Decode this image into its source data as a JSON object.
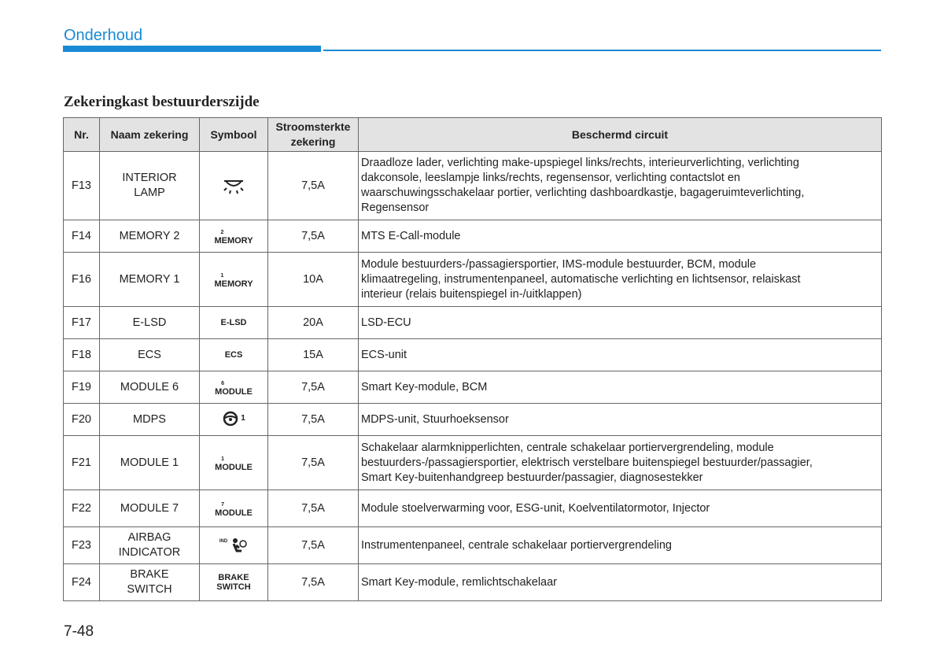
{
  "header": {
    "title": "Onderhoud"
  },
  "section": {
    "title": "Zekeringkast bestuurderszijde"
  },
  "table": {
    "columns": [
      "Nr.",
      "Naam zekering",
      "Symbool",
      [
        "Stroomsterkte",
        "zekering"
      ],
      "Beschermd circuit"
    ],
    "rows": [
      {
        "nr": "F13",
        "name": [
          "INTERIOR",
          "LAMP"
        ],
        "rating": "7,5A",
        "circuit": [
          "Draadloze lader, verlichting make-upspiegel links/rechts, interieurverlichting, verlichting",
          "dakconsole, leeslampje links/rechts, regensensor, verlichting contactslot en",
          "waarschuwingsschakelaar portier, verlichting dashboardkastje, bagageruimteverlichting,",
          "Regensensor"
        ]
      },
      {
        "nr": "F14",
        "name": [
          "MEMORY 2"
        ],
        "symbol": {
          "sup": "2",
          "text": [
            "MEMORY"
          ]
        },
        "rating": "7,5A",
        "circuit": [
          "MTS E-Call-module"
        ]
      },
      {
        "nr": "F16",
        "name": [
          "MEMORY 1"
        ],
        "symbol": {
          "sup": "1",
          "text": [
            "MEMORY"
          ]
        },
        "rating": "10A",
        "circuit": [
          "Module bestuurders-/passagiersportier, IMS-module bestuurder, BCM, module",
          "klimaatregeling, instrumentenpaneel, automatische verlichting en lichtsensor, relaiskast",
          "interieur (relais buitenspiegel in-/uitklappen)"
        ]
      },
      {
        "nr": "F17",
        "name": [
          "E-LSD"
        ],
        "symbol": {
          "text": [
            "E-LSD"
          ]
        },
        "rating": "20A",
        "circuit": [
          "LSD-ECU"
        ]
      },
      {
        "nr": "F18",
        "name": [
          "ECS"
        ],
        "symbol": {
          "text": [
            "ECS"
          ]
        },
        "rating": "15A",
        "circuit": [
          "ECS-unit"
        ]
      },
      {
        "nr": "F19",
        "name": [
          "MODULE 6"
        ],
        "symbol": {
          "sup": "6",
          "text": [
            "MODULE"
          ]
        },
        "rating": "7,5A",
        "circuit": [
          "Smart Key-module, BCM"
        ]
      },
      {
        "nr": "F20",
        "name": [
          "MDPS"
        ],
        "symbol": {
          "sup": "1"
        },
        "rating": "7,5A",
        "circuit": [
          "MDPS-unit, Stuurhoeksensor"
        ]
      },
      {
        "nr": "F21",
        "name": [
          "MODULE 1"
        ],
        "symbol": {
          "sup": "1",
          "text": [
            "MODULE"
          ]
        },
        "rating": "7,5A",
        "circuit": [
          "Schakelaar alarmknipperlichten, centrale schakelaar portiervergrendeling, module",
          "bestuurders-/passagiersportier, elektrisch verstelbare buitenspiegel bestuurder/passagier,",
          "Smart Key-buitenhandgreep bestuurder/passagier, diagnosestekker"
        ]
      },
      {
        "nr": "F22",
        "name": [
          "MODULE 7"
        ],
        "symbol": {
          "sup": "7",
          "text": [
            "MODULE"
          ]
        },
        "rating": "7,5A",
        "circuit": [
          "Module stoelverwarming voor, ESG-unit, Koelventilatormotor, Injector"
        ]
      },
      {
        "nr": "F23",
        "name": [
          "AIRBAG",
          "INDICATOR"
        ],
        "symbol": {
          "sup": "IND"
        },
        "rating": "7,5A",
        "circuit": [
          "Instrumentenpaneel, centrale schakelaar portiervergrendeling"
        ]
      },
      {
        "nr": "F24",
        "name": [
          "BRAKE",
          "SWITCH"
        ],
        "symbol": {
          "text": [
            "BRAKE",
            "SWITCH"
          ]
        },
        "rating": "7,5A",
        "circuit": [
          "Smart Key-module, remlichtschakelaar"
        ]
      }
    ]
  },
  "footer": {
    "page": "7-48"
  }
}
